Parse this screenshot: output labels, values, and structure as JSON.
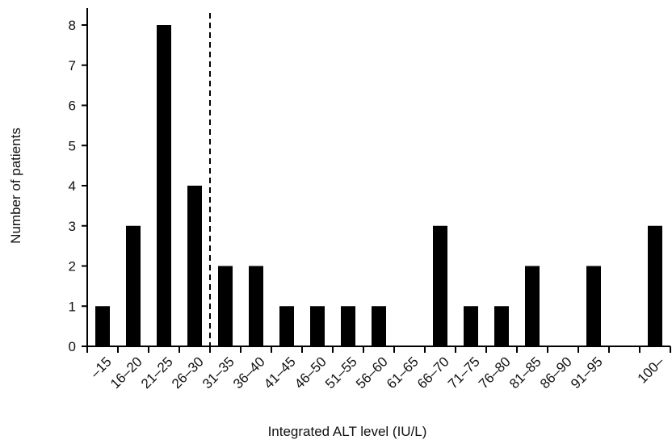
{
  "chart_data": {
    "type": "bar",
    "title": "",
    "xlabel": "Integrated ALT level (IU/L)",
    "ylabel": "Number of patients",
    "categories": [
      "–15",
      "16–20",
      "21–25",
      "26–30",
      "31–35",
      "36–40",
      "41–45",
      "46–50",
      "51–55",
      "56–60",
      "61–65",
      "66–70",
      "71–75",
      "76–80",
      "81–85",
      "86–90",
      "91–95",
      "",
      "100–"
    ],
    "values": [
      1,
      3,
      8,
      4,
      2,
      2,
      1,
      1,
      1,
      1,
      0,
      3,
      1,
      1,
      2,
      0,
      2,
      0,
      3
    ],
    "ylim": [
      0,
      8
    ],
    "yticks": [
      0,
      1,
      2,
      3,
      4,
      5,
      6,
      7,
      8
    ],
    "grid": false,
    "bar_color": "#000000",
    "threshold_line": {
      "after_category": "26–30",
      "style": "dashed"
    }
  }
}
